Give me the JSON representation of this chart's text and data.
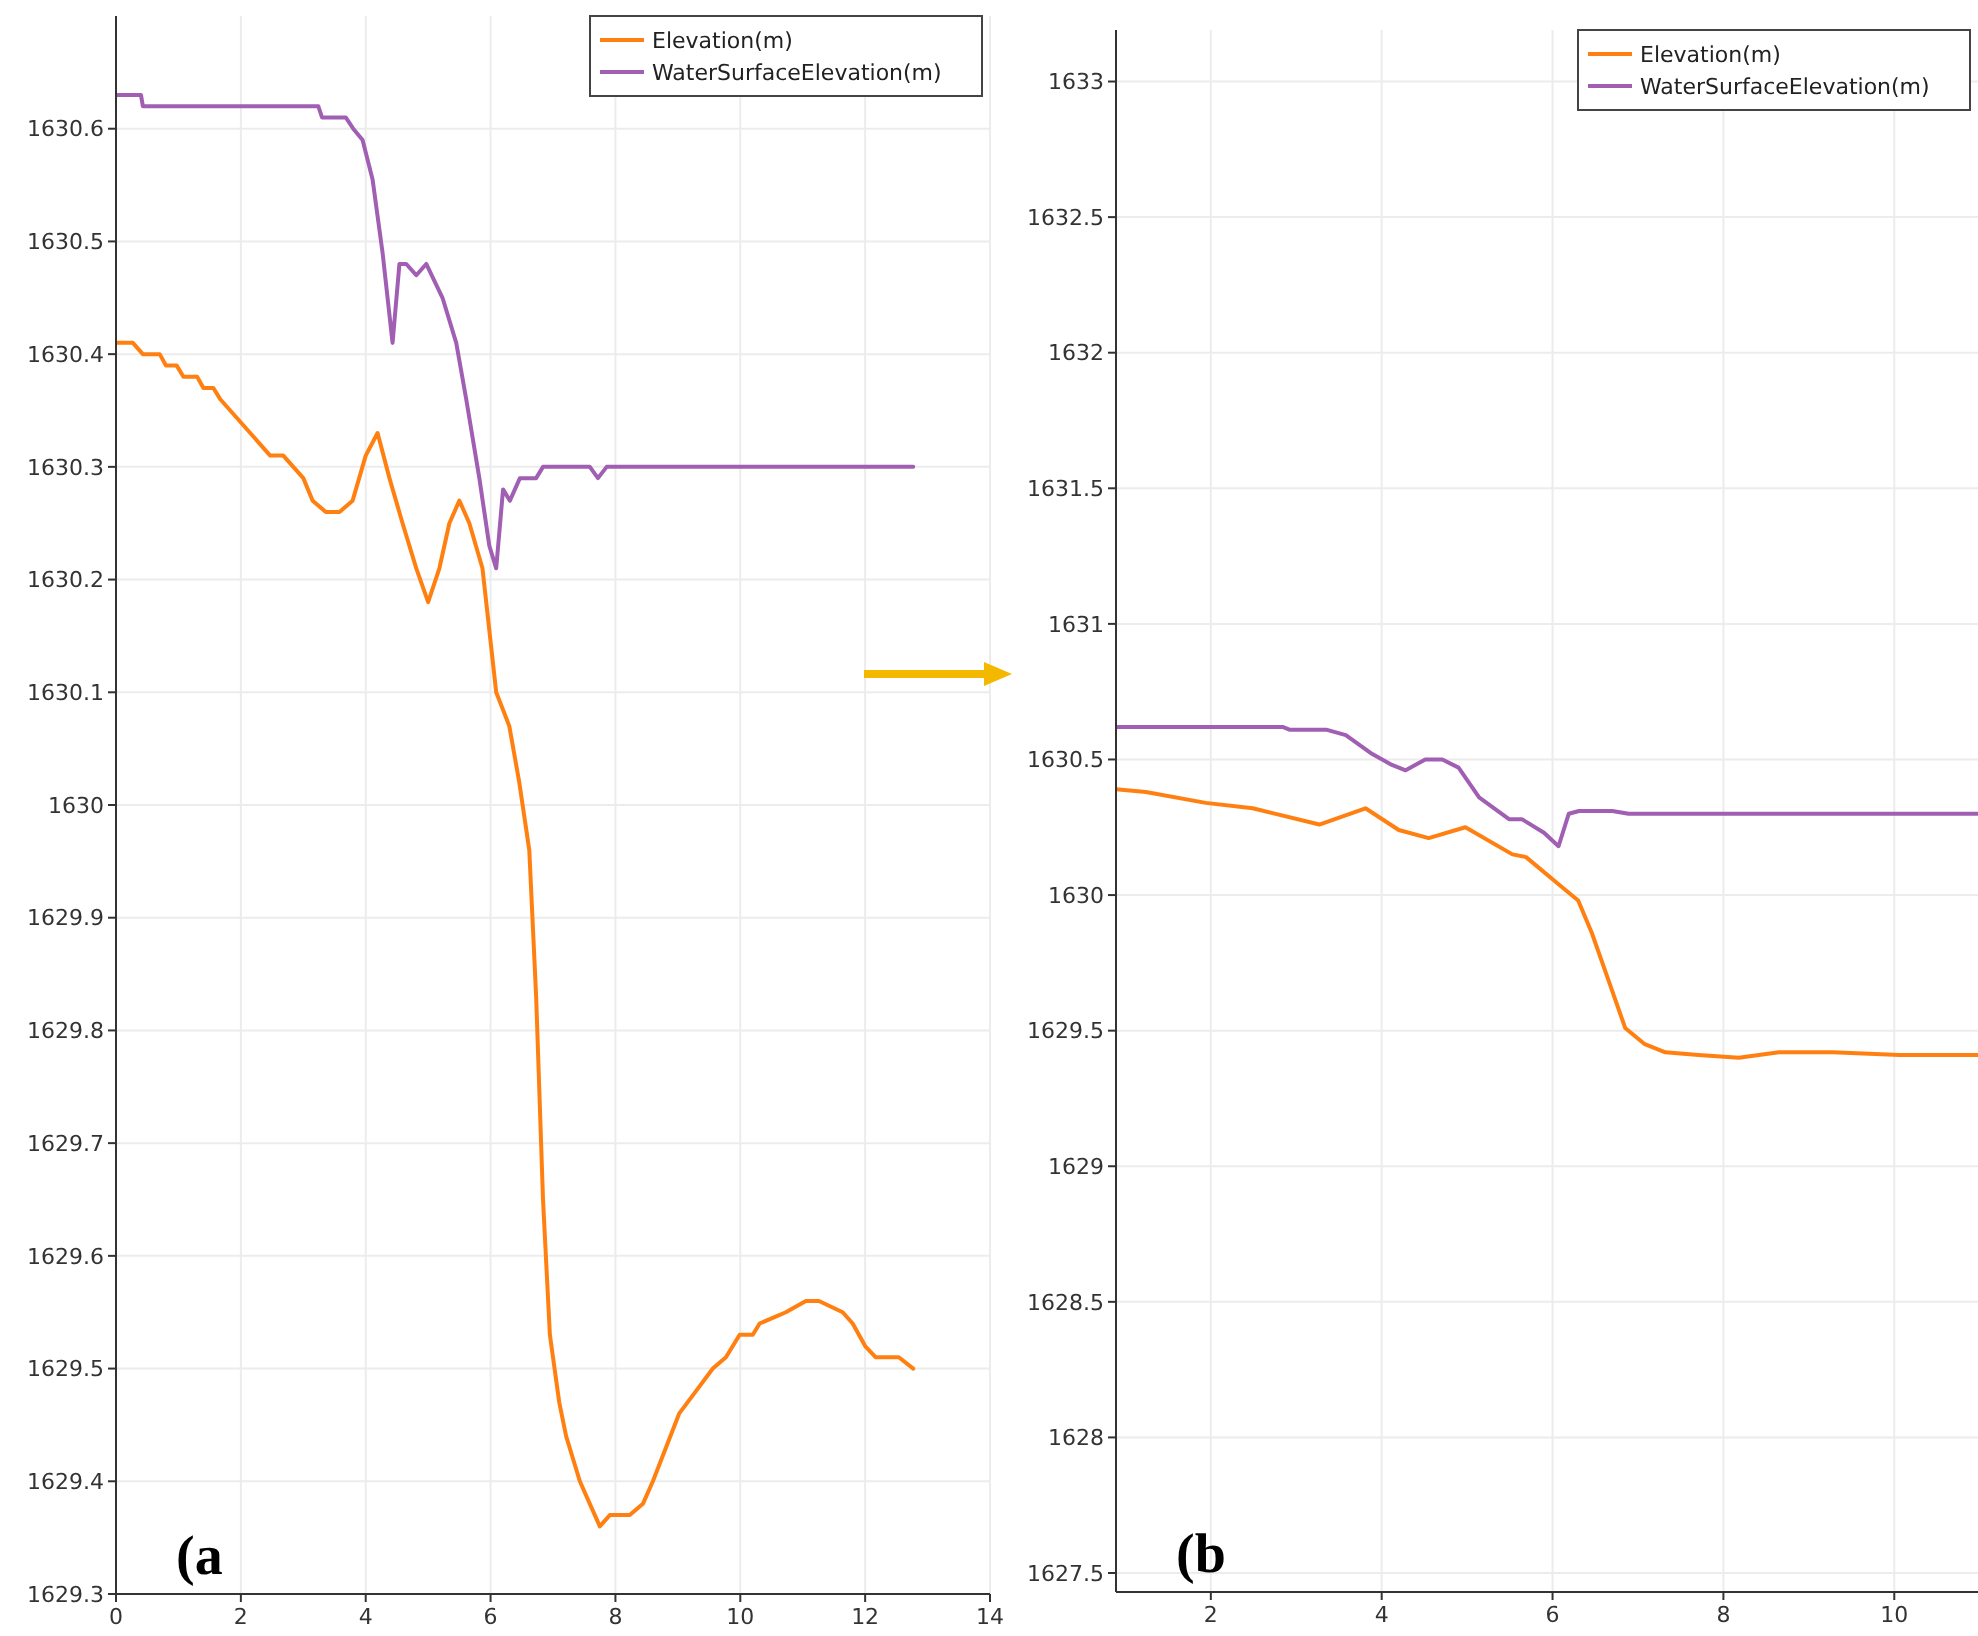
{
  "chart_data": [
    {
      "type": "line",
      "xlim": [
        0,
        14
      ],
      "ylim": [
        1629.3,
        1630.7
      ],
      "xticks": [
        0,
        2,
        4,
        6,
        8,
        10,
        12,
        14
      ],
      "yticks": [
        1629.3,
        1629.4,
        1629.5,
        1629.6,
        1629.7,
        1629.8,
        1629.9,
        1630,
        1630.1,
        1630.2,
        1630.3,
        1630.4,
        1630.5,
        1630.6
      ],
      "grid": true,
      "legend": "top right",
      "annotations": [
        "(a"
      ],
      "series": [
        {
          "name": "Elevation(m)",
          "color": "#ff8010",
          "x": [
            0,
            0.27,
            0.43,
            0.7,
            0.8,
            0.97,
            1.08,
            1.3,
            1.4,
            1.56,
            1.67,
            1.83,
            1.99,
            2.15,
            2.31,
            2.47,
            2.68,
            2.84,
            3.0,
            3.15,
            3.36,
            3.58,
            3.79,
            4.0,
            4.19,
            4.38,
            4.59,
            4.81,
            5.0,
            5.18,
            5.34,
            5.5,
            5.66,
            5.87,
            6.09,
            6.3,
            6.46,
            6.62,
            6.73,
            6.84,
            6.95,
            7.1,
            7.21,
            7.43,
            7.59,
            7.75,
            7.91,
            8.23,
            8.44,
            8.6,
            8.81,
            9.02,
            9.29,
            9.56,
            9.77,
            9.99,
            10.2,
            10.31,
            10.52,
            10.73,
            11.05,
            11.26,
            11.64,
            11.8,
            12.0,
            12.17,
            12.54,
            12.77
          ],
          "values": [
            1630.41,
            1630.41,
            1630.4,
            1630.4,
            1630.39,
            1630.39,
            1630.38,
            1630.38,
            1630.37,
            1630.37,
            1630.36,
            1630.35,
            1630.34,
            1630.33,
            1630.32,
            1630.31,
            1630.31,
            1630.3,
            1630.29,
            1630.27,
            1630.26,
            1630.26,
            1630.27,
            1630.31,
            1630.33,
            1630.29,
            1630.25,
            1630.21,
            1630.18,
            1630.21,
            1630.25,
            1630.27,
            1630.25,
            1630.21,
            1630.1,
            1630.07,
            1630.02,
            1629.96,
            1629.83,
            1629.65,
            1629.53,
            1629.47,
            1629.44,
            1629.4,
            1629.38,
            1629.36,
            1629.37,
            1629.37,
            1629.38,
            1629.4,
            1629.43,
            1629.46,
            1629.48,
            1629.5,
            1629.51,
            1629.53,
            1629.53,
            1629.54,
            1629.545,
            1629.55,
            1629.56,
            1629.56,
            1629.55,
            1629.54,
            1629.52,
            1629.51,
            1629.51,
            1629.5
          ]
        },
        {
          "name": "WaterSurfaceElevation(m)",
          "color": "#a05fb3",
          "x": [
            0,
            0.4,
            0.43,
            3.24,
            3.3,
            3.68,
            3.8,
            3.95,
            4.11,
            4.27,
            4.43,
            4.54,
            4.65,
            4.81,
            4.97,
            5.23,
            5.45,
            5.61,
            5.82,
            5.98,
            6.09,
            6.2,
            6.31,
            6.47,
            6.73,
            6.84,
            7.59,
            7.72,
            7.86,
            12.77
          ],
          "values": [
            1630.63,
            1630.63,
            1630.62,
            1630.62,
            1630.61,
            1630.61,
            1630.6,
            1630.59,
            1630.555,
            1630.49,
            1630.41,
            1630.48,
            1630.48,
            1630.47,
            1630.48,
            1630.45,
            1630.41,
            1630.36,
            1630.29,
            1630.23,
            1630.21,
            1630.28,
            1630.27,
            1630.29,
            1630.29,
            1630.3,
            1630.3,
            1630.29,
            1630.3,
            1630.3
          ]
        }
      ]
    },
    {
      "type": "line",
      "xlim": [
        0.89,
        10.98
      ],
      "ylim": [
        1627.43,
        1633.19
      ],
      "xticks": [
        2,
        4,
        6,
        8,
        10
      ],
      "yticks": [
        1627.5,
        1628,
        1628.5,
        1629,
        1629.5,
        1630,
        1630.5,
        1631,
        1631.5,
        1632,
        1632.5,
        1633
      ],
      "grid": true,
      "legend": "top right",
      "annotations": [
        "(b"
      ],
      "series": [
        {
          "name": "Elevation(m)",
          "color": "#ff8010",
          "x": [
            0.89,
            1.24,
            1.94,
            2.49,
            3.27,
            3.81,
            4.2,
            4.55,
            4.98,
            5.53,
            5.69,
            6.07,
            6.3,
            6.46,
            6.65,
            6.85,
            7.08,
            7.32,
            7.71,
            8.18,
            8.65,
            9.28,
            10.06,
            10.98
          ],
          "values": [
            1630.39,
            1630.38,
            1630.34,
            1630.32,
            1630.26,
            1630.32,
            1630.24,
            1630.21,
            1630.25,
            1630.15,
            1630.14,
            1630.04,
            1629.98,
            1629.86,
            1629.69,
            1629.51,
            1629.45,
            1629.42,
            1629.41,
            1629.4,
            1629.42,
            1629.42,
            1629.41,
            1629.41
          ]
        },
        {
          "name": "WaterSurfaceElevation(m)",
          "color": "#a05fb3",
          "x": [
            0.89,
            2.84,
            2.92,
            3.35,
            3.58,
            3.89,
            4.12,
            4.28,
            4.51,
            4.71,
            4.9,
            5.14,
            5.49,
            5.64,
            5.9,
            6.07,
            6.19,
            6.31,
            6.7,
            6.89,
            10.98
          ],
          "values": [
            1630.62,
            1630.62,
            1630.61,
            1630.61,
            1630.59,
            1630.52,
            1630.48,
            1630.46,
            1630.5,
            1630.5,
            1630.47,
            1630.36,
            1630.28,
            1630.28,
            1630.23,
            1630.18,
            1630.3,
            1630.31,
            1630.31,
            1630.3,
            1630.3
          ]
        }
      ]
    }
  ]
}
